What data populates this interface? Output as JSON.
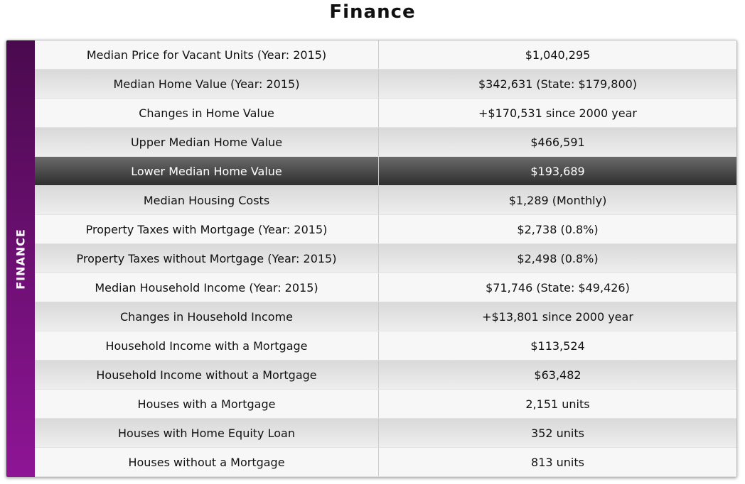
{
  "header": {
    "title": "Finance"
  },
  "side_label": "FINANCE",
  "table": {
    "rows": [
      [
        "Median Price for Vacant Units (Year: 2015)",
        "$1,040,295"
      ],
      [
        "Median Home Value (Year: 2015)",
        "$342,631 (State: $179,800)"
      ],
      [
        "Changes in Home Value",
        "+$170,531 since 2000 year"
      ],
      [
        "Upper Median Home Value",
        "$466,591"
      ],
      [
        "Lower Median Home Value",
        "$193,689"
      ],
      [
        "Median Housing Costs",
        "$1,289 (Monthly)"
      ],
      [
        "Property Taxes with Mortgage (Year: 2015)",
        "$2,738 (0.8%)"
      ],
      [
        "Property Taxes without Mortgage (Year: 2015)",
        "$2,498 (0.8%)"
      ],
      [
        "Median Household Income (Year: 2015)",
        "$71,746 (State: $49,426)"
      ],
      [
        "Changes in Household Income",
        "+$13,801 since 2000 year"
      ],
      [
        "Household Income with a Mortgage",
        "$113,524"
      ],
      [
        "Household Income without a Mortgage",
        "$63,482"
      ],
      [
        "Houses with a Mortgage",
        "2,151 units"
      ],
      [
        "Houses with Home Equity Loan",
        "352 units"
      ],
      [
        "Houses without a Mortgage",
        "813 units"
      ]
    ]
  }
}
